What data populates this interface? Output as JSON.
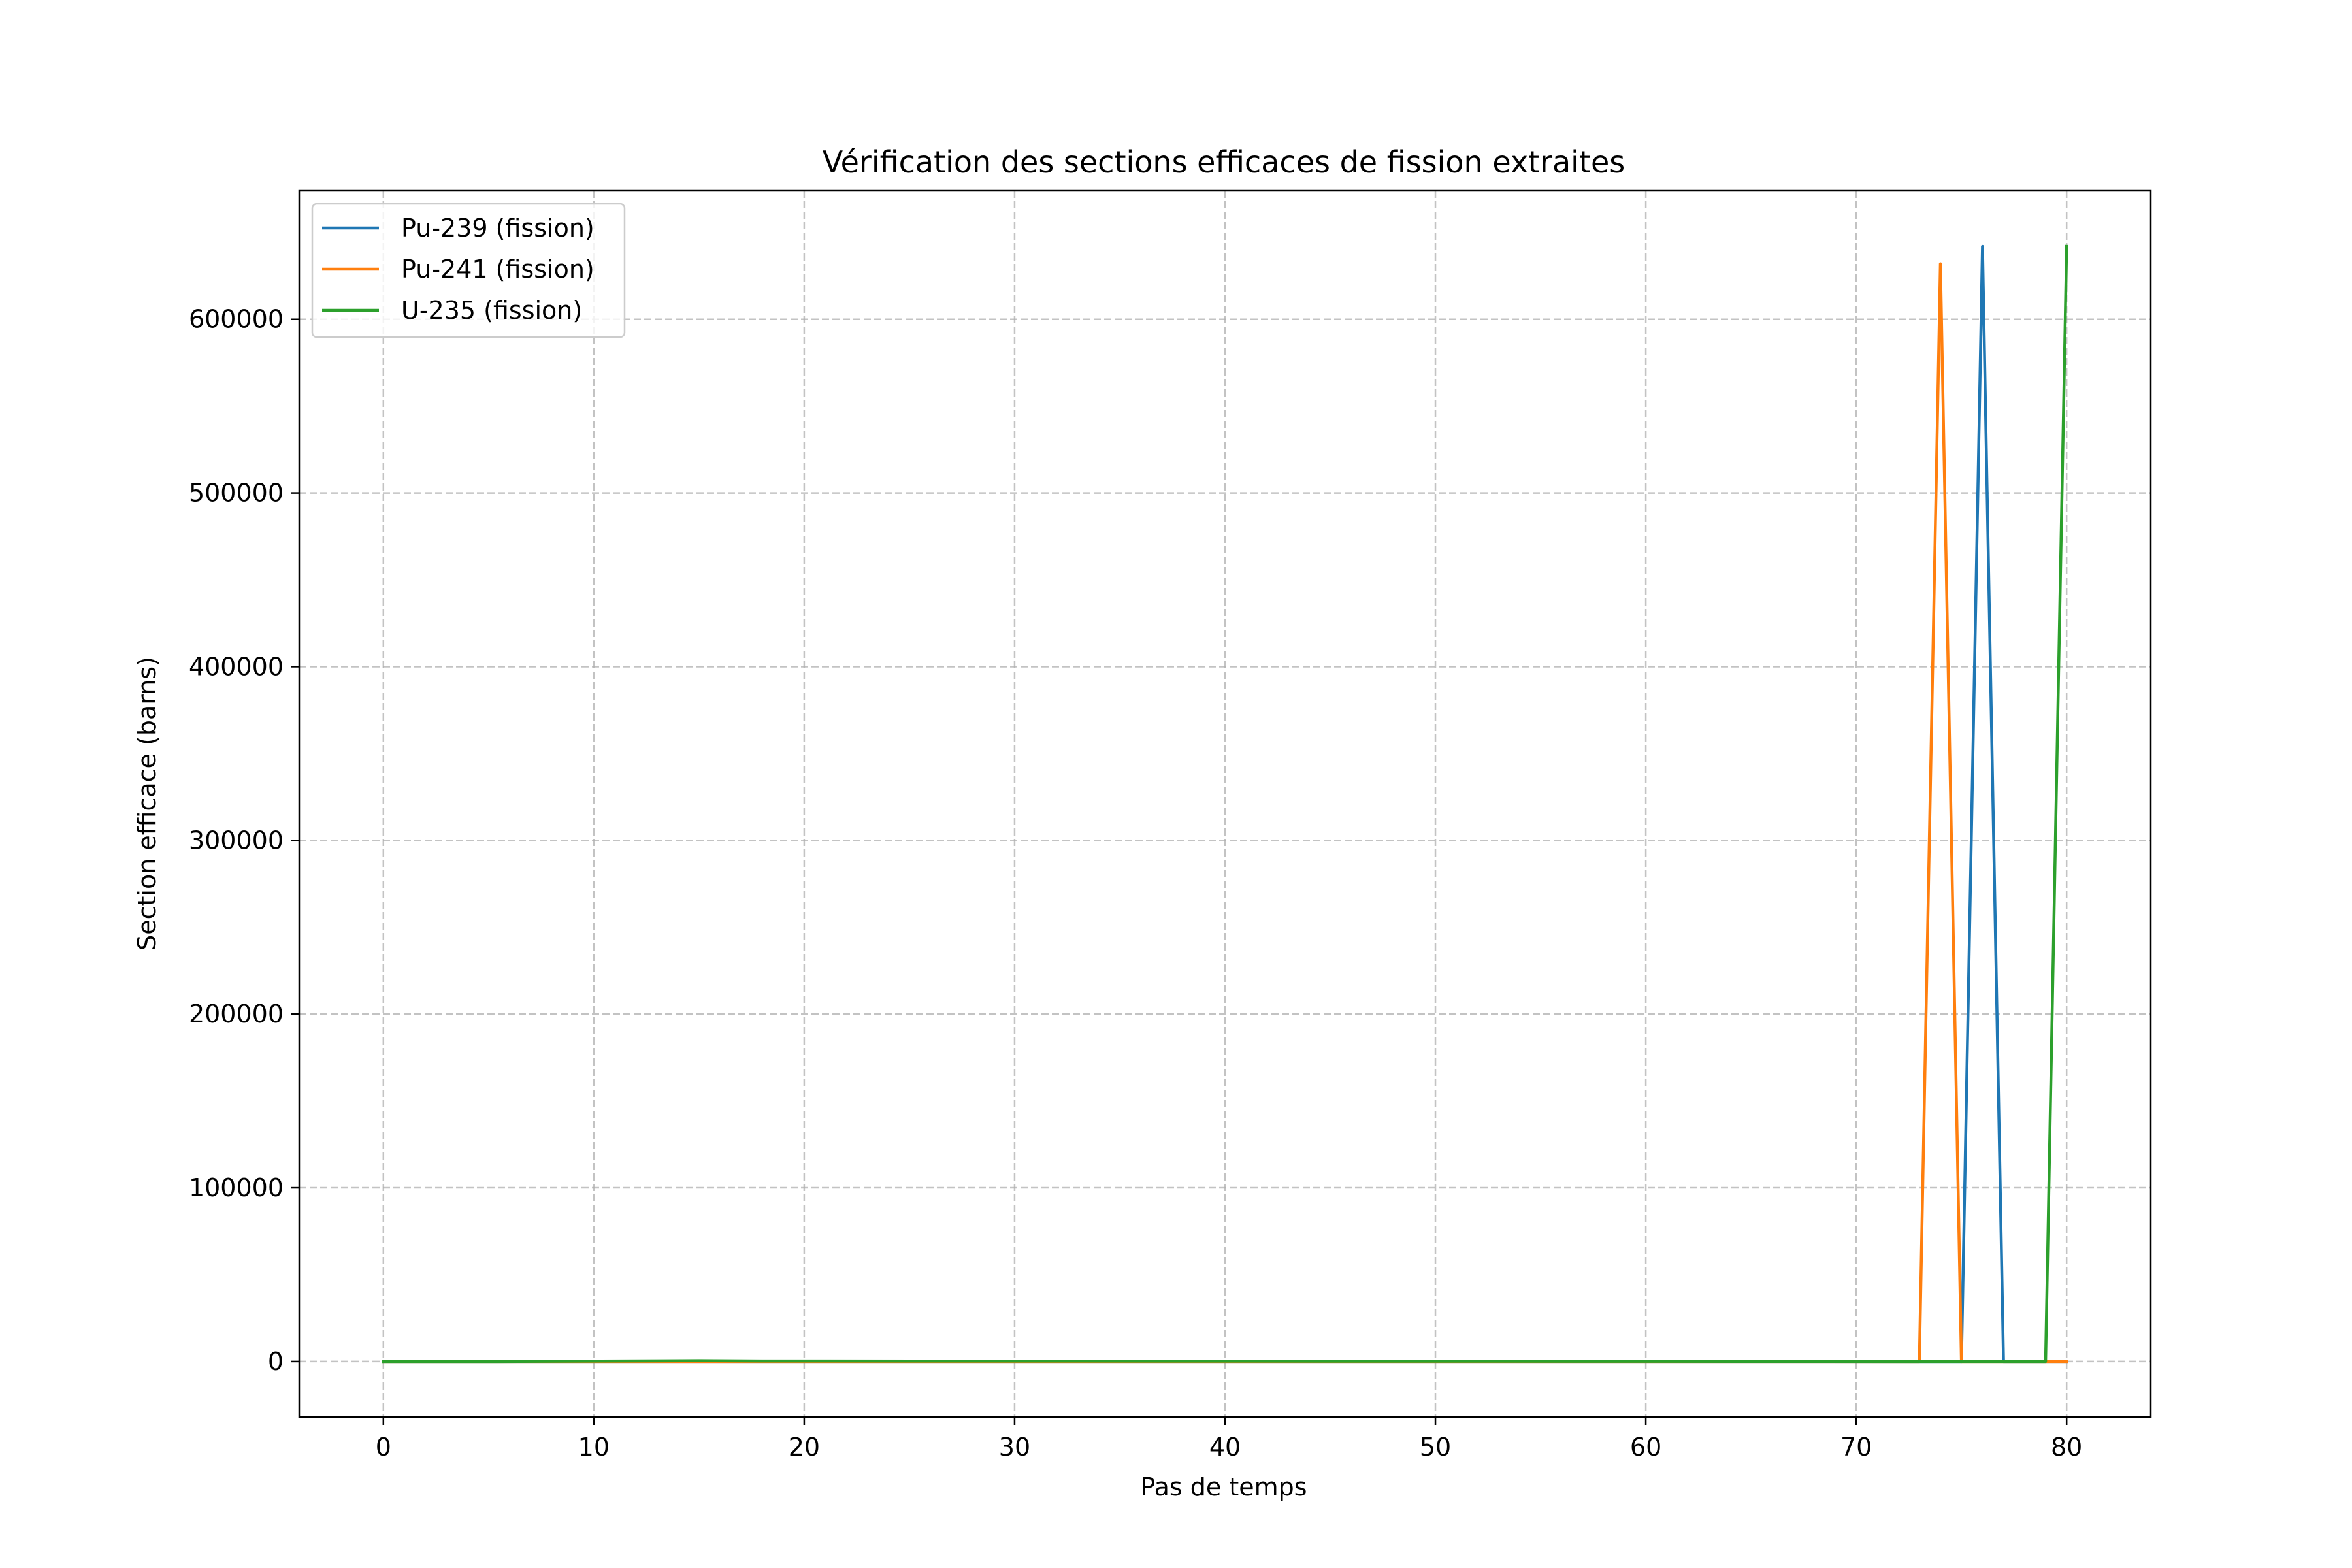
{
  "chart_data": {
    "type": "line",
    "title": "Vérification des sections efficaces de fission extraites",
    "xlabel": "Pas de temps",
    "ylabel": "Section efficace (barns)",
    "xlim": [
      -4,
      84
    ],
    "ylim": [
      -32000,
      674000
    ],
    "xticks": [
      0,
      10,
      20,
      30,
      40,
      50,
      60,
      70,
      80
    ],
    "xtick_labels": [
      "0",
      "10",
      "20",
      "30",
      "40",
      "50",
      "60",
      "70",
      "80"
    ],
    "yticks": [
      0,
      100000,
      200000,
      300000,
      400000,
      500000,
      600000
    ],
    "ytick_labels": [
      "0",
      "100000",
      "200000",
      "300000",
      "400000",
      "500000",
      "600000"
    ],
    "grid": true,
    "legend_position": "top-left",
    "series": [
      {
        "name": "Pu-239 (fission)",
        "color": "#1f77b4",
        "points": [
          [
            0,
            0
          ],
          [
            75,
            0
          ],
          [
            76,
            642000
          ],
          [
            77,
            0
          ],
          [
            80,
            0
          ]
        ]
      },
      {
        "name": "Pu-241 (fission)",
        "color": "#ff7f0e",
        "points": [
          [
            0,
            0
          ],
          [
            73,
            0
          ],
          [
            74,
            632000
          ],
          [
            75,
            0
          ],
          [
            80,
            0
          ]
        ]
      },
      {
        "name": "U-235 (fission)",
        "color": "#2ca02c",
        "points": [
          [
            0,
            0
          ],
          [
            5,
            0
          ],
          [
            15,
            500
          ],
          [
            18,
            300
          ],
          [
            79,
            0
          ],
          [
            80,
            642000
          ]
        ]
      }
    ]
  }
}
